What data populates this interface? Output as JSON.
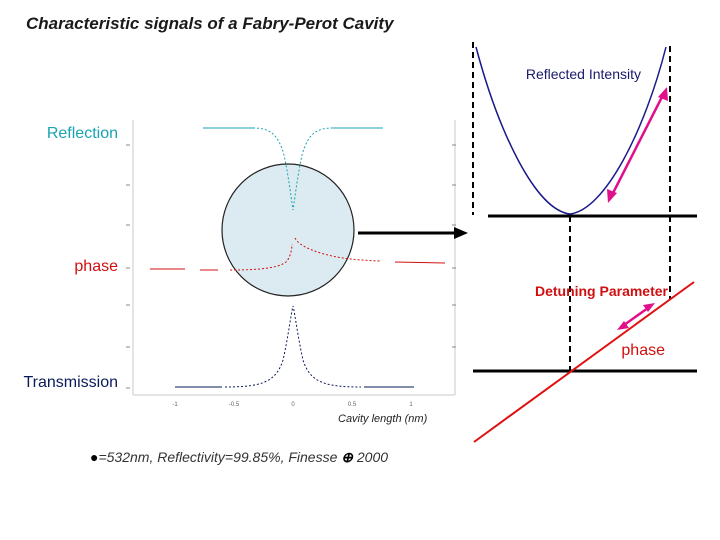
{
  "title": "Characteristic signals of a Fabry-Perot Cavity",
  "left_plot": {
    "reflection_label": "Reflection",
    "phase_label": "phase",
    "transmission_label": "Transmission",
    "x_axis_label": "Cavity length (nm)",
    "x_ticks": [
      "-1",
      "-0.5",
      "0",
      "0.5",
      "1"
    ]
  },
  "parameters": {
    "wavelength_symbol": "●",
    "text": "=532nm, Reflectivity=99.85%, Finesse",
    "approx_symbol": "⊕",
    "finesse_value": "2000"
  },
  "right_plot": {
    "reflected_intensity_label": "Reflected Intensity",
    "detuning_label": "Detuning Parameter",
    "phase_label": "phase"
  },
  "colors": {
    "reflection": "#1aa3b0",
    "phase": "#d01010",
    "transmission": "#0a1a5a",
    "intensity_curve": "#1a1a8a",
    "arrow": "#e0108a",
    "zoom_circle_fill": "#dcebf1"
  }
}
